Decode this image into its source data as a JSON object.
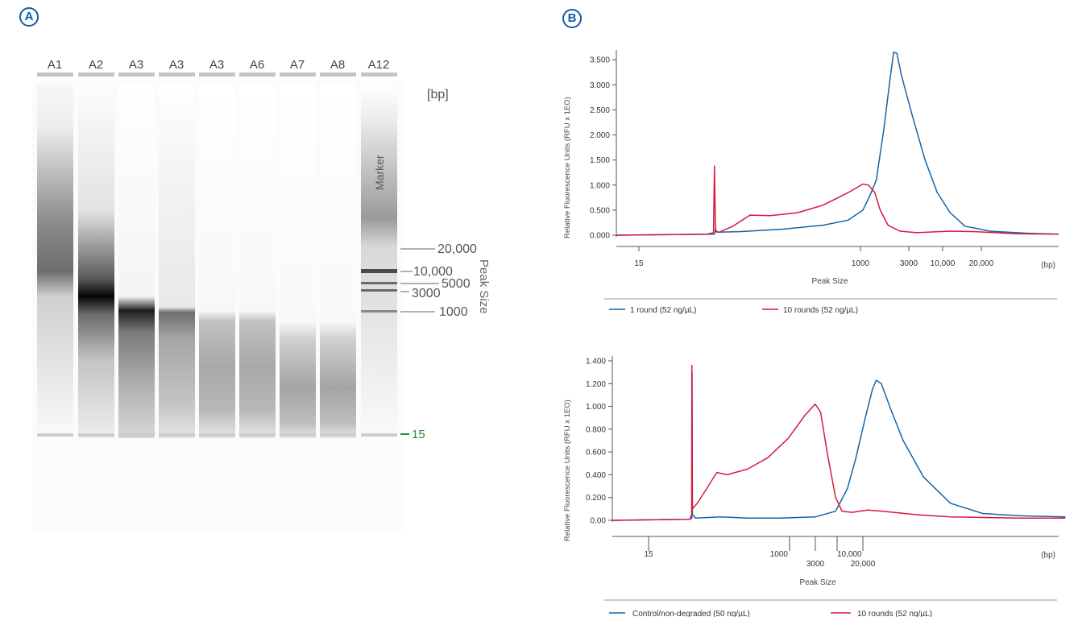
{
  "panels": {
    "a_label": "A",
    "b_label": "B"
  },
  "gel": {
    "lanes": [
      "A1",
      "A2",
      "A3",
      "A3",
      "A3",
      "A6",
      "A7",
      "A8",
      "A12"
    ],
    "unit": "[bp]",
    "marker_label": "Marker",
    "axis_title": "Peak Size",
    "size_labels": [
      "20,000",
      "10,000",
      "5000",
      "3000",
      "1000",
      "15"
    ],
    "colors": {
      "lower_marker": "#1e8c3a",
      "band": "#111111"
    }
  },
  "chart_data": [
    {
      "type": "line",
      "ylabel": "Relative Fluorescence Units (RFU x 1EO)",
      "xlabel": "Peak Size",
      "x_unit": "(bp)",
      "x_scale": "log",
      "yticks": [
        "0.000",
        "0.500",
        "1.000",
        "1.500",
        "2.000",
        "2.500",
        "3.000",
        "3.500"
      ],
      "ylim": [
        0,
        3.6
      ],
      "xticks": [
        "15",
        "1000",
        "3000",
        "10,000",
        "20,000"
      ],
      "legend_position": "bottom",
      "series": [
        {
          "name": "1 round (52 ng/µL)",
          "color": "#1464a8",
          "points": [
            [
              1.0,
              0.0
            ],
            [
              15,
              0.02
            ],
            [
              15.5,
              0.12
            ],
            [
              16,
              0.06
            ],
            [
              30,
              0.07
            ],
            [
              100,
              0.12
            ],
            [
              300,
              0.2
            ],
            [
              600,
              0.3
            ],
            [
              900,
              0.5
            ],
            [
              1100,
              0.8
            ],
            [
              1300,
              1.1
            ],
            [
              1600,
              2.1
            ],
            [
              1900,
              3.1
            ],
            [
              2100,
              3.65
            ],
            [
              2300,
              3.63
            ],
            [
              2600,
              3.2
            ],
            [
              3500,
              2.4
            ],
            [
              5000,
              1.5
            ],
            [
              7000,
              0.85
            ],
            [
              10000,
              0.45
            ],
            [
              15000,
              0.18
            ],
            [
              30000,
              0.08
            ],
            [
              80000,
              0.04
            ],
            [
              200000,
              0.02
            ]
          ]
        },
        {
          "name": "10 rounds (52 ng/µL)",
          "color": "#d7193c",
          "points": [
            [
              1.0,
              0.0
            ],
            [
              12,
              0.02
            ],
            [
              14.6,
              0.05
            ],
            [
              15,
              1.38
            ],
            [
              15.4,
              0.08
            ],
            [
              17,
              0.06
            ],
            [
              25,
              0.18
            ],
            [
              40,
              0.4
            ],
            [
              70,
              0.39
            ],
            [
              150,
              0.45
            ],
            [
              300,
              0.6
            ],
            [
              600,
              0.85
            ],
            [
              900,
              1.02
            ],
            [
              1050,
              1.0
            ],
            [
              1250,
              0.85
            ],
            [
              1450,
              0.5
            ],
            [
              1800,
              0.2
            ],
            [
              2500,
              0.08
            ],
            [
              4000,
              0.05
            ],
            [
              10000,
              0.08
            ],
            [
              20000,
              0.07
            ],
            [
              60000,
              0.03
            ],
            [
              200000,
              0.02
            ]
          ]
        }
      ]
    },
    {
      "type": "line",
      "ylabel": "Relative Fluorescence Units (RFU x 1EO)",
      "xlabel": "Peak Size",
      "x_unit": "(bp)",
      "x_scale": "log",
      "yticks": [
        "0.00",
        "0.200",
        "0.400",
        "0.600",
        "0.800",
        "1.000",
        "1.200",
        "1.400"
      ],
      "ylim": [
        0,
        1.4
      ],
      "xticks": [
        "15",
        "1000",
        "3000",
        "10,000",
        "20,000"
      ],
      "legend_position": "bottom",
      "series": [
        {
          "name": "Control/non-degraded (50 ng/µL)",
          "color": "#1464a8",
          "points": [
            [
              1.0,
              0.0
            ],
            [
              14,
              0.01
            ],
            [
              15,
              0.02
            ],
            [
              15.1,
              1.3
            ],
            [
              15.3,
              0.05
            ],
            [
              17,
              0.02
            ],
            [
              40,
              0.03
            ],
            [
              100,
              0.02
            ],
            [
              300,
              0.02
            ],
            [
              1000,
              0.03
            ],
            [
              2000,
              0.08
            ],
            [
              3000,
              0.28
            ],
            [
              4000,
              0.55
            ],
            [
              5500,
              0.9
            ],
            [
              7000,
              1.15
            ],
            [
              8000,
              1.23
            ],
            [
              9500,
              1.2
            ],
            [
              13000,
              0.98
            ],
            [
              20000,
              0.7
            ],
            [
              40000,
              0.38
            ],
            [
              100000,
              0.15
            ],
            [
              300000,
              0.06
            ],
            [
              1000000,
              0.04
            ],
            [
              5000000,
              0.03
            ]
          ]
        },
        {
          "name": "10 rounds (52 ng/µL)",
          "color": "#d7193c",
          "points": [
            [
              1.0,
              0.0
            ],
            [
              14,
              0.01
            ],
            [
              14.9,
              0.05
            ],
            [
              15,
              1.36
            ],
            [
              15.3,
              0.1
            ],
            [
              18,
              0.15
            ],
            [
              25,
              0.28
            ],
            [
              35,
              0.42
            ],
            [
              50,
              0.4
            ],
            [
              100,
              0.45
            ],
            [
              200,
              0.55
            ],
            [
              400,
              0.72
            ],
            [
              700,
              0.92
            ],
            [
              1000,
              1.02
            ],
            [
              1200,
              0.95
            ],
            [
              1500,
              0.6
            ],
            [
              2000,
              0.2
            ],
            [
              2500,
              0.08
            ],
            [
              3500,
              0.07
            ],
            [
              6000,
              0.09
            ],
            [
              10000,
              0.08
            ],
            [
              30000,
              0.05
            ],
            [
              100000,
              0.03
            ],
            [
              1000000,
              0.02
            ],
            [
              5000000,
              0.02
            ]
          ]
        }
      ]
    }
  ]
}
